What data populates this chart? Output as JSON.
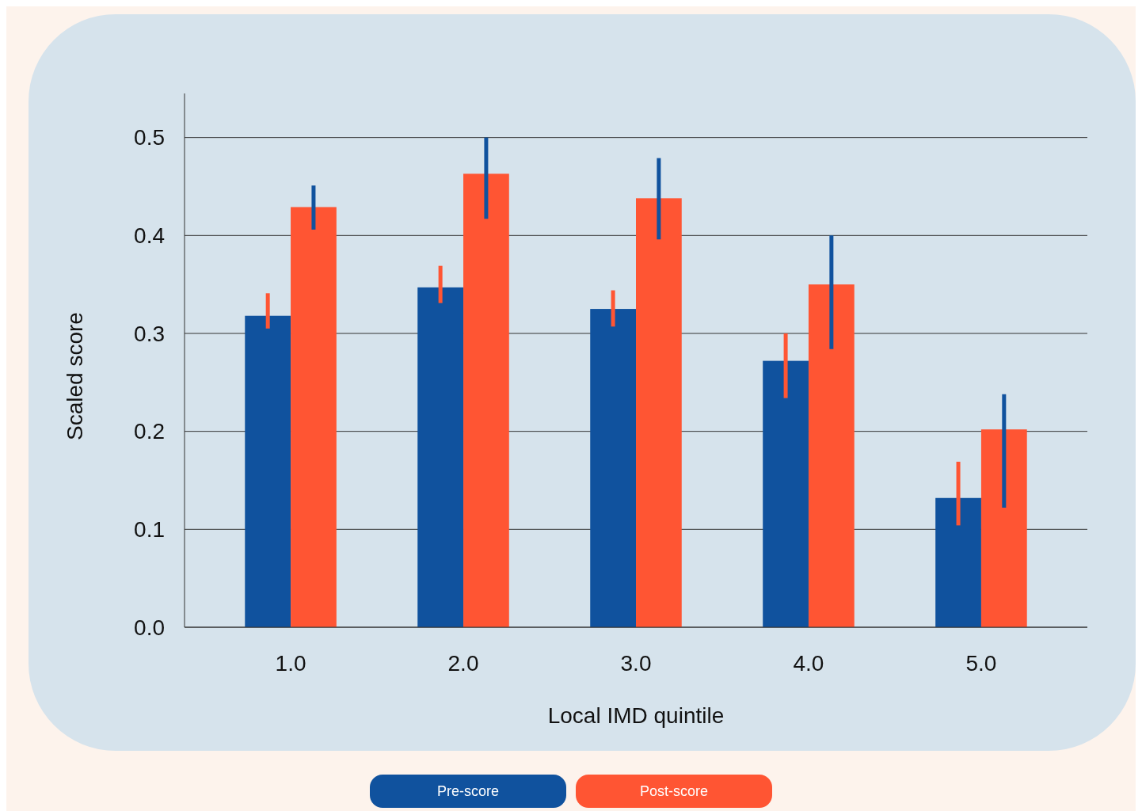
{
  "chart_data": {
    "type": "bar",
    "xlabel": "Local IMD quintile",
    "ylabel": "Scaled score",
    "categories": [
      "1.0",
      "2.0",
      "3.0",
      "4.0",
      "5.0"
    ],
    "series": [
      {
        "name": "Pre-score",
        "color": "#10529e",
        "values": [
          0.318,
          0.347,
          0.325,
          0.272,
          0.132
        ],
        "errors": [
          [
            0.305,
            0.341
          ],
          [
            0.331,
            0.369
          ],
          [
            0.307,
            0.344
          ],
          [
            0.234,
            0.3
          ],
          [
            0.104,
            0.169
          ]
        ]
      },
      {
        "name": "Post-score",
        "color": "#ff5533",
        "values": [
          0.429,
          0.463,
          0.438,
          0.35,
          0.202
        ],
        "errors": [
          [
            0.406,
            0.451
          ],
          [
            0.417,
            0.5
          ],
          [
            0.396,
            0.479
          ],
          [
            0.284,
            0.4
          ],
          [
            0.122,
            0.238
          ]
        ]
      }
    ],
    "ylim": [
      0,
      0.545
    ],
    "yticks": [
      {
        "value": 0,
        "label": "0.0"
      },
      0.1,
      0.2,
      0.3,
      0.4,
      0.5
    ],
    "grid": "y",
    "legend": "bottom"
  }
}
